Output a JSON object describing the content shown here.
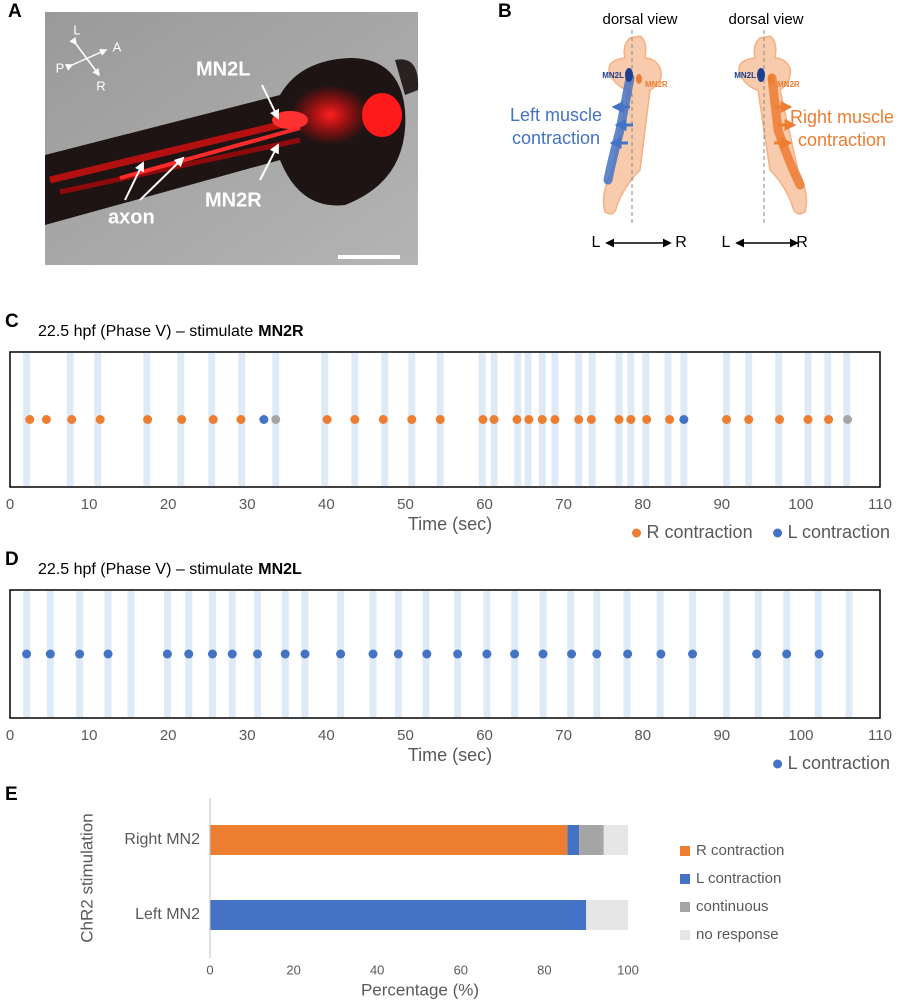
{
  "panel_a": {
    "label": "A",
    "compass": [
      "L",
      "A",
      "P",
      "R"
    ],
    "labels": [
      "MN2L",
      "MN2R",
      "axon"
    ]
  },
  "panel_b": {
    "label": "B",
    "views": [
      {
        "title": "dorsal view",
        "left_neuron": "MN2L",
        "right_neuron": "MN2R",
        "caption": [
          "Left muscle",
          "contraction"
        ],
        "axis": [
          "L",
          "R"
        ]
      },
      {
        "title": "dorsal view",
        "left_neuron": "MN2L",
        "right_neuron": "MN2R",
        "caption": [
          "Right muscle",
          "contraction"
        ],
        "axis": [
          "L",
          "R"
        ]
      }
    ]
  },
  "chart_data": [
    {
      "panel": "C",
      "type": "scatter",
      "title": "22.5 hpf (Phase V) – stimulate",
      "title_bold": "MN2R",
      "xlabel": "Time (sec)",
      "xlim": [
        0,
        110
      ],
      "xticks": [
        0,
        10,
        20,
        30,
        40,
        50,
        60,
        70,
        80,
        90,
        100,
        110
      ],
      "stimulus_color": "#deebf7",
      "stimulus_times": [
        2.1,
        7.6,
        11.1,
        17.3,
        21.6,
        25.5,
        29.3,
        33.6,
        39.8,
        43.6,
        47.4,
        50.8,
        54.4,
        59.7,
        61.2,
        64.2,
        65.5,
        67.3,
        68.9,
        71.9,
        73.6,
        77.0,
        78.5,
        80.4,
        83.2,
        85.2,
        90.6,
        93.4,
        97.2,
        100.9,
        103.4,
        105.8
      ],
      "series": [
        {
          "name": "R contraction",
          "color": "#ed7d31",
          "x": [
            2.5,
            4.6,
            7.8,
            11.4,
            17.4,
            21.7,
            25.7,
            29.2,
            40.1,
            43.6,
            47.2,
            50.8,
            54.4,
            59.8,
            61.2,
            64.1,
            65.6,
            67.3,
            68.9,
            71.9,
            73.5,
            77.0,
            78.5,
            80.5,
            83.4,
            90.6,
            93.4,
            97.3,
            100.9,
            103.5
          ]
        },
        {
          "name": "L contraction",
          "color": "#4472c4",
          "x": [
            32.1,
            85.2
          ]
        },
        {
          "color": "#a5a5a5",
          "x": [
            33.6,
            105.9
          ]
        }
      ]
    },
    {
      "panel": "D",
      "type": "scatter",
      "title": "22.5 hpf (Phase V) – stimulate",
      "title_bold": "MN2L",
      "xlabel": "Time (sec)",
      "xlim": [
        0,
        110
      ],
      "xticks": [
        0,
        10,
        20,
        30,
        40,
        50,
        60,
        70,
        80,
        90,
        100,
        110
      ],
      "stimulus_color": "#deebf7",
      "stimulus_times": [
        2.1,
        5.1,
        8.8,
        12.4,
        15.3,
        19.9,
        22.6,
        25.6,
        28.1,
        31.3,
        34.8,
        37.3,
        41.8,
        45.9,
        49.1,
        52.6,
        56.6,
        60.3,
        63.8,
        67.4,
        70.9,
        74.2,
        78.0,
        82.2,
        86.3,
        90.6,
        94.6,
        98.2,
        102.2,
        106.1
      ],
      "series": [
        {
          "name": "L contraction",
          "color": "#4472c4",
          "x": [
            2.1,
            5.1,
            8.8,
            12.4,
            19.9,
            22.6,
            25.6,
            28.1,
            31.3,
            34.8,
            37.3,
            41.8,
            45.9,
            49.1,
            52.7,
            56.6,
            60.3,
            63.8,
            67.4,
            71.0,
            74.2,
            78.1,
            82.3,
            86.3,
            94.4,
            98.2,
            102.3
          ]
        }
      ]
    },
    {
      "panel": "E",
      "type": "bar",
      "orientation": "horizontal",
      "stacked": true,
      "ylabel": "ChR2 stimulation",
      "xlabel": "Percentage (%)",
      "categories": [
        "Right MN2",
        "Left MN2"
      ],
      "xlim": [
        0,
        100
      ],
      "xticks": [
        0,
        20,
        40,
        60,
        80,
        100
      ],
      "series": [
        {
          "name": "R contraction",
          "color": "#ed7d31",
          "values": [
            85.5,
            0
          ]
        },
        {
          "name": "L contraction",
          "color": "#4472c4",
          "values": [
            2.8,
            90
          ]
        },
        {
          "name": "continuous",
          "color": "#a5a5a5",
          "values": [
            5.9,
            0
          ]
        },
        {
          "name": "no response",
          "color": "#e7e6e6",
          "values": [
            5.8,
            10
          ]
        }
      ]
    }
  ]
}
